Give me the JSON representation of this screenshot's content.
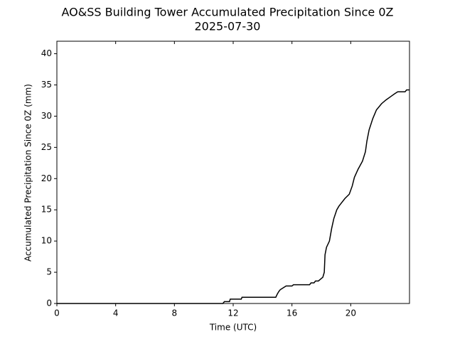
{
  "chart_data": {
    "type": "line",
    "title": "AO&SS Building Tower Accumulated Precipitation Since 0Z",
    "subtitle": "2025-07-30",
    "xlabel": "Time (UTC)",
    "ylabel": "Accumulated Precipitation Since 0Z (mm)",
    "xlim": [
      0,
      24
    ],
    "xticks": [
      0,
      4,
      8,
      12,
      16,
      20
    ],
    "ylim": [
      0,
      42
    ],
    "yticks": [
      0,
      5,
      10,
      15,
      20,
      25,
      30,
      35,
      40
    ],
    "grid": false,
    "series": [
      {
        "name": "Accumulated precipitation",
        "color": "#000000",
        "x": [
          0,
          11.3,
          11.4,
          11.75,
          11.8,
          12.55,
          12.6,
          14.9,
          15.0,
          15.1,
          15.2,
          15.4,
          15.6,
          16.0,
          16.1,
          17.2,
          17.3,
          17.5,
          17.6,
          17.8,
          17.9,
          18.1,
          18.2,
          18.25,
          18.35,
          18.55,
          18.7,
          18.85,
          19.05,
          19.2,
          19.4,
          19.6,
          19.9,
          20.1,
          20.25,
          20.5,
          20.8,
          21.0,
          21.1,
          21.25,
          21.5,
          21.75,
          22.1,
          22.4,
          22.7,
          23.0,
          23.2,
          23.7,
          23.8,
          24
        ],
        "values": [
          0,
          0,
          0.3,
          0.3,
          0.7,
          0.7,
          1.0,
          1.0,
          1.5,
          1.9,
          2.2,
          2.5,
          2.8,
          2.8,
          3.0,
          3.0,
          3.3,
          3.3,
          3.6,
          3.6,
          3.8,
          4.2,
          5.0,
          7.8,
          9.0,
          10.0,
          12.0,
          13.6,
          15.0,
          15.6,
          16.2,
          16.8,
          17.5,
          18.8,
          20.2,
          21.5,
          22.8,
          24.3,
          26.0,
          27.8,
          29.6,
          31.0,
          32.0,
          32.6,
          33.1,
          33.6,
          33.9,
          33.9,
          34.2,
          34.2
        ]
      }
    ]
  }
}
